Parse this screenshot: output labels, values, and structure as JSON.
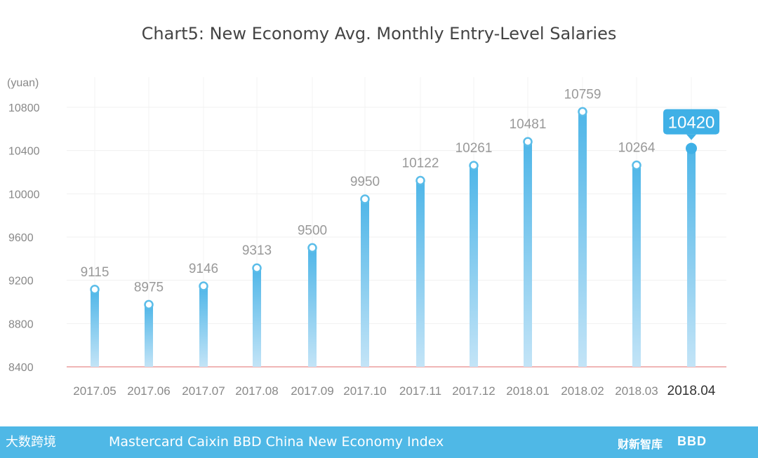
{
  "footer": {
    "logo_text": "大数跨境",
    "source": "Mastercard Caixin BBD China New Economy Index",
    "brand1": "财新智库",
    "brand2": "BBD"
  },
  "chart_data": {
    "type": "bar",
    "title": "Chart5:  New Economy Avg. Monthly Entry-Level Salaries",
    "ylabel": "(yuan)",
    "xlabel": "",
    "ylim": [
      8400,
      10800
    ],
    "yticks": [
      8400,
      8800,
      9200,
      9600,
      10000,
      10400,
      10800
    ],
    "categories": [
      "2017.05",
      "2017.06",
      "2017.07",
      "2017.08",
      "2017.09",
      "2017.10",
      "2017.11",
      "2017.12",
      "2018.01",
      "2018.02",
      "2018.03",
      "2018.04"
    ],
    "values": [
      9115,
      8975,
      9146,
      9313,
      9500,
      9950,
      10122,
      10261,
      10481,
      10759,
      10264,
      10420
    ],
    "highlight_index": 11,
    "grid": true,
    "colors": {
      "bar": "#5bbde9",
      "bar_light": "#b8e0f6",
      "highlight": "#3fb0e6",
      "baseline": "#e88a8a",
      "label": "#999999"
    }
  }
}
